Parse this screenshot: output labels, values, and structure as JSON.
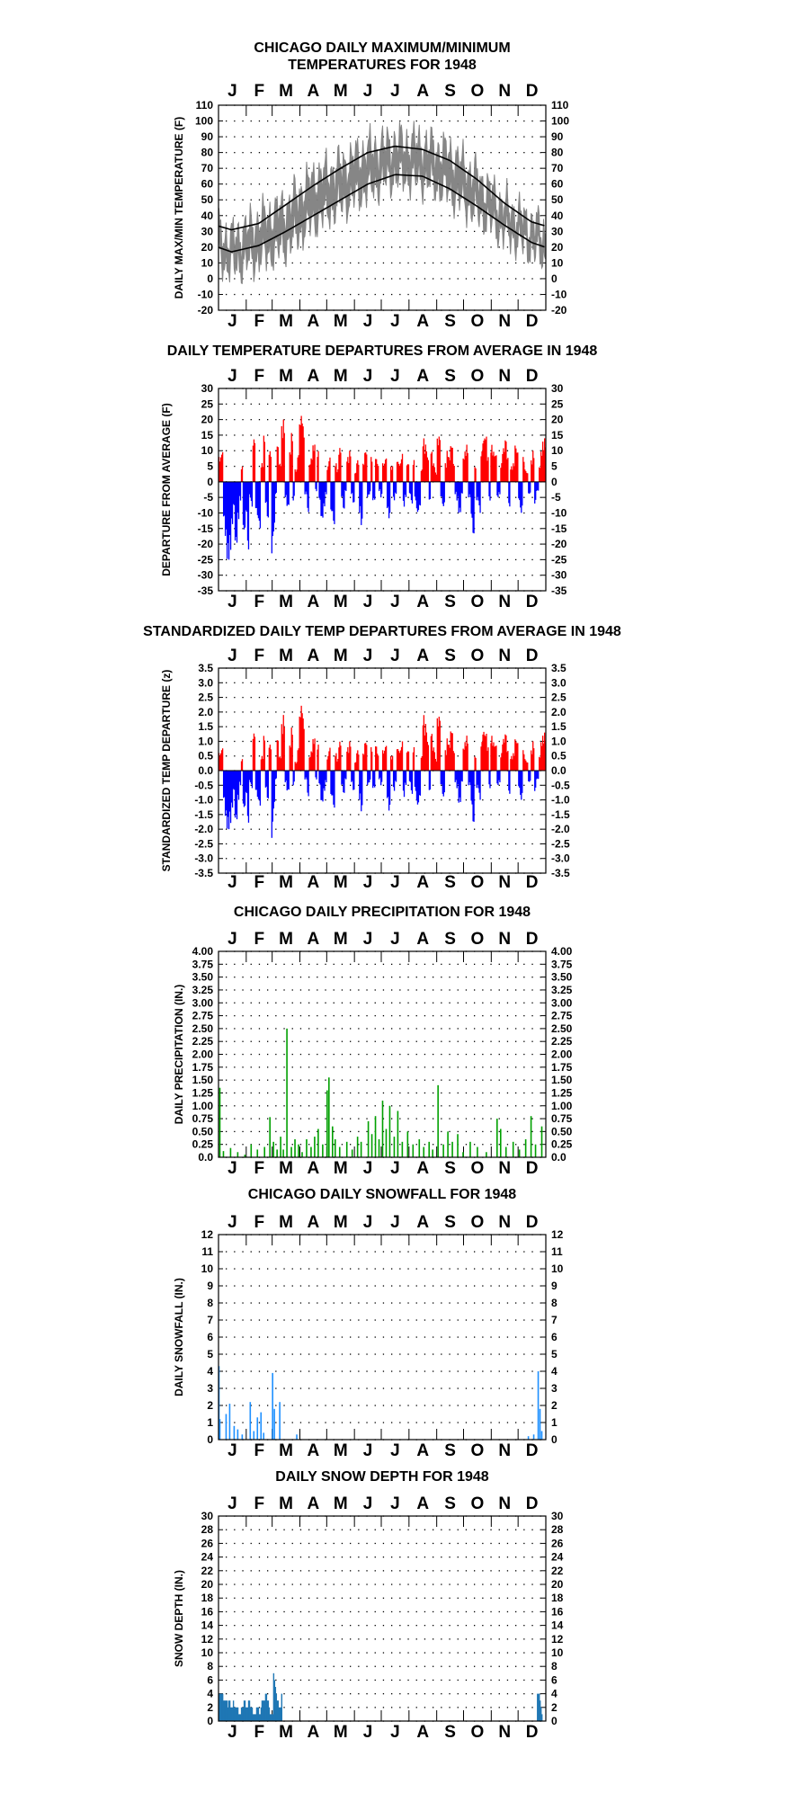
{
  "page": {
    "year": "1948"
  },
  "months": [
    "J",
    "F",
    "M",
    "A",
    "M",
    "J",
    "J",
    "A",
    "S",
    "O",
    "N",
    "D"
  ],
  "colors": {
    "temp_line": "#808080",
    "temp_avg": "#000000",
    "pos": "#ff0000",
    "neg": "#0000ff",
    "precip": "#00a000",
    "snow": "#1e90ff",
    "depth": "#1f77b4"
  },
  "chart_data": [
    {
      "id": "temperature",
      "type": "area",
      "title_lines": [
        "CHICAGO DAILY MAXIMUM/MINIMUM",
        "TEMPERATURES FOR 1948"
      ],
      "ylabel": "DAILY MAX/MIN TEMPERATURE (F)",
      "ylim": [
        -20,
        110
      ],
      "yticks": [
        "-20",
        "-10",
        "0",
        "10",
        "20",
        "30",
        "40",
        "50",
        "60",
        "70",
        "80",
        "90",
        "100",
        "110"
      ],
      "right_axis": true,
      "x": "day of year 1-366",
      "series": [
        {
          "values_max_monthly_mean": [
            24,
            35,
            44,
            62,
            70,
            80,
            85,
            84,
            78,
            63,
            45,
            34
          ],
          "values_min_monthly_mean": [
            10,
            16,
            24,
            40,
            50,
            60,
            68,
            66,
            58,
            45,
            32,
            22
          ]
        },
        {
          "normal_high": [
            31,
            35,
            47,
            59,
            70,
            80,
            84,
            82,
            75,
            63,
            48,
            36
          ],
          "normal_low": [
            17,
            21,
            30,
            40,
            50,
            60,
            66,
            65,
            57,
            46,
            34,
            23
          ]
        }
      ]
    },
    {
      "id": "departure",
      "type": "bar",
      "title_lines": [
        "DAILY TEMPERATURE DEPARTURES FROM AVERAGE IN 1948"
      ],
      "ylabel": "DEPARTURE FROM AVERAGE (F)",
      "ylim": [
        -35,
        30
      ],
      "yticks": [
        "-35",
        "-30",
        "-25",
        "-20",
        "-15",
        "-10",
        "-5",
        "0",
        "5",
        "10",
        "15",
        "20",
        "25",
        "30"
      ],
      "right_axis": true,
      "values": [
        8,
        10,
        -12,
        -18,
        -25,
        -22,
        -14,
        -8,
        -20,
        -12,
        -6,
        5,
        -16,
        -10,
        -22,
        -5,
        -8,
        14,
        -9,
        -12,
        -15,
        6,
        15,
        -7,
        -12,
        10,
        -23,
        -16,
        -4,
        12,
        6,
        18,
        20,
        -5,
        -8,
        10,
        16,
        -6,
        4,
        9,
        20,
        22,
        18,
        -4,
        -10,
        6,
        8,
        12,
        -3,
        10,
        -6,
        -12,
        -8,
        -4,
        5,
        8,
        -10,
        -14,
        6,
        4,
        11,
        -5,
        -9,
        -3,
        8,
        10,
        -4,
        -7,
        3,
        7,
        -10,
        -14,
        6,
        10,
        -5,
        -4,
        8,
        -6,
        8,
        6,
        -3,
        -5,
        6,
        8,
        -9,
        -12,
        5,
        -6,
        -4,
        7,
        6,
        9,
        -8,
        -5,
        6,
        -4,
        -7,
        7,
        -6,
        -10,
        -8,
        4,
        14,
        12,
        8,
        -6,
        10,
        6,
        3,
        14,
        15,
        -5,
        -8,
        6,
        10,
        8,
        12,
        6,
        -4,
        -6,
        -10,
        -4,
        8,
        10,
        12,
        -5,
        -12,
        -18,
        5,
        -6,
        -10,
        10,
        14,
        15,
        8,
        -6,
        12,
        10,
        9,
        -5,
        -4,
        6,
        11,
        14,
        8,
        -8,
        5,
        6,
        12,
        10,
        -6,
        -10,
        8,
        4,
        3,
        -4,
        7,
        10,
        -7,
        -3,
        5,
        10,
        13,
        14
      ],
      "colors": {
        "pos": "red",
        "neg": "blue"
      }
    },
    {
      "id": "standardized",
      "type": "bar",
      "title_lines": [
        "STANDARDIZED DAILY TEMP DEPARTURES FROM AVERAGE IN 1948"
      ],
      "ylabel": "STANDARDIZED TEMP DEPARTURE (z)",
      "ylim": [
        -3.5,
        3.5
      ],
      "yticks": [
        "-3.5",
        "-3.0",
        "-2.5",
        "-2.0",
        "-1.5",
        "-1.0",
        "-0.5",
        "0.0",
        "0.5",
        "1.0",
        "1.5",
        "2.0",
        "2.5",
        "3.0",
        "3.5"
      ],
      "right_axis": true,
      "values": [
        0.6,
        0.8,
        -1.0,
        -1.6,
        -2.0,
        -1.8,
        -1.3,
        -0.7,
        -1.7,
        -1.0,
        -0.5,
        0.4,
        -1.3,
        -0.8,
        -1.8,
        -0.4,
        -0.6,
        1.3,
        -0.7,
        -1.0,
        -1.2,
        0.5,
        1.2,
        -0.6,
        -1.0,
        0.9,
        -2.3,
        -1.3,
        -0.3,
        1.1,
        0.5,
        1.6,
        1.9,
        -0.4,
        -0.7,
        0.9,
        1.5,
        -0.5,
        0.3,
        0.8,
        2.0,
        2.3,
        1.8,
        -0.3,
        -0.9,
        0.5,
        0.7,
        1.1,
        -0.3,
        0.9,
        -0.5,
        -1.1,
        -0.7,
        -0.4,
        0.5,
        0.8,
        -0.9,
        -1.3,
        0.6,
        0.4,
        1.0,
        -0.5,
        -0.8,
        -0.3,
        0.8,
        1.0,
        -0.4,
        -0.7,
        0.3,
        0.7,
        -1.0,
        -1.4,
        0.6,
        1.0,
        -0.5,
        -0.4,
        0.8,
        -0.6,
        0.9,
        0.6,
        -0.3,
        -0.5,
        0.7,
        0.9,
        -1.0,
        -1.4,
        0.5,
        -0.7,
        -0.4,
        0.8,
        0.7,
        1.0,
        -0.9,
        -0.5,
        0.7,
        -0.4,
        -0.8,
        0.8,
        -0.7,
        -1.2,
        -0.9,
        0.5,
        1.9,
        1.6,
        1.0,
        -0.7,
        1.3,
        0.8,
        0.4,
        1.8,
        1.9,
        -0.5,
        -0.9,
        0.7,
        1.1,
        0.9,
        1.4,
        0.7,
        -0.4,
        -0.6,
        -1.1,
        -0.4,
        0.8,
        1.0,
        1.2,
        -0.5,
        -1.2,
        -1.9,
        0.5,
        -0.6,
        -1.0,
        1.0,
        1.4,
        1.3,
        0.8,
        -0.6,
        1.2,
        1.0,
        0.9,
        -0.5,
        -0.4,
        0.6,
        1.1,
        1.3,
        0.7,
        -0.8,
        0.5,
        0.6,
        1.1,
        1.0,
        -0.6,
        -1.0,
        0.7,
        0.4,
        0.3,
        -0.4,
        0.7,
        1.0,
        -0.7,
        -0.3,
        0.5,
        1.0,
        1.2,
        1.3
      ],
      "colors": {
        "pos": "red",
        "neg": "blue"
      }
    },
    {
      "id": "precipitation",
      "type": "bar",
      "title_lines": [
        "CHICAGO DAILY PRECIPITATION FOR 1948"
      ],
      "ylabel": "DAILY PRECIPITATION (IN.)",
      "ylim": [
        0,
        4
      ],
      "yticks": [
        "0.0",
        "0.25",
        "0.50",
        "0.75",
        "1.00",
        "1.25",
        "1.50",
        "1.75",
        "2.00",
        "2.25",
        "2.50",
        "2.75",
        "3.00",
        "3.25",
        "3.50",
        "3.75",
        "4.00"
      ],
      "right_axis": true,
      "events": [
        [
          2,
          1.35
        ],
        [
          6,
          0.12
        ],
        [
          14,
          0.18
        ],
        [
          22,
          0.1
        ],
        [
          30,
          0.05
        ],
        [
          37,
          0.25
        ],
        [
          44,
          0.15
        ],
        [
          52,
          0.2
        ],
        [
          58,
          0.78
        ],
        [
          62,
          0.3
        ],
        [
          66,
          0.15
        ],
        [
          70,
          0.4
        ],
        [
          73,
          0.15
        ],
        [
          77,
          2.5
        ],
        [
          82,
          0.2
        ],
        [
          86,
          0.35
        ],
        [
          90,
          0.25
        ],
        [
          94,
          0.1
        ],
        [
          99,
          0.35
        ],
        [
          104,
          0.2
        ],
        [
          108,
          0.4
        ],
        [
          112,
          0.55
        ],
        [
          117,
          0.25
        ],
        [
          122,
          1.3
        ],
        [
          124,
          1.55
        ],
        [
          128,
          0.6
        ],
        [
          131,
          0.35
        ],
        [
          136,
          0.2
        ],
        [
          144,
          0.3
        ],
        [
          150,
          0.15
        ],
        [
          156,
          0.4
        ],
        [
          160,
          0.3
        ],
        [
          168,
          0.7
        ],
        [
          172,
          0.45
        ],
        [
          176,
          0.8
        ],
        [
          180,
          0.35
        ],
        [
          184,
          1.1
        ],
        [
          188,
          0.55
        ],
        [
          192,
          1.0
        ],
        [
          197,
          0.4
        ],
        [
          201,
          0.9
        ],
        [
          206,
          0.3
        ],
        [
          212,
          0.5
        ],
        [
          218,
          0.25
        ],
        [
          225,
          0.35
        ],
        [
          230,
          0.2
        ],
        [
          236,
          0.3
        ],
        [
          240,
          0.15
        ],
        [
          246,
          1.4
        ],
        [
          252,
          0.25
        ],
        [
          257,
          0.5
        ],
        [
          262,
          0.3
        ],
        [
          268,
          0.45
        ],
        [
          274,
          0.1
        ],
        [
          282,
          0.3
        ],
        [
          290,
          0.2
        ],
        [
          300,
          0.1
        ],
        [
          312,
          0.75
        ],
        [
          316,
          0.55
        ],
        [
          322,
          0.2
        ],
        [
          330,
          0.3
        ],
        [
          337,
          0.15
        ],
        [
          344,
          0.35
        ],
        [
          350,
          0.8
        ],
        [
          355,
          0.25
        ],
        [
          362,
          0.6
        ]
      ],
      "color": "green"
    },
    {
      "id": "snowfall",
      "type": "bar",
      "title_lines": [
        "CHICAGO DAILY SNOWFALL FOR 1948"
      ],
      "ylabel": "DAILY SNOWFALL (IN.)",
      "ylim": [
        0,
        12
      ],
      "yticks": [
        "0",
        "1",
        "2",
        "3",
        "4",
        "5",
        "6",
        "7",
        "8",
        "9",
        "10",
        "11",
        "12"
      ],
      "right_axis": true,
      "events": [
        [
          1,
          4.3
        ],
        [
          2,
          1.2
        ],
        [
          9,
          1.5
        ],
        [
          13,
          2.1
        ],
        [
          18,
          0.8
        ],
        [
          22,
          0.6
        ],
        [
          27,
          0.3
        ],
        [
          36,
          2.2
        ],
        [
          40,
          0.5
        ],
        [
          44,
          1.3
        ],
        [
          48,
          1.6
        ],
        [
          51,
          0.4
        ],
        [
          61,
          3.9
        ],
        [
          63,
          1.8
        ],
        [
          69,
          2.2
        ],
        [
          88,
          0.3
        ],
        [
          347,
          0.2
        ],
        [
          353,
          0.3
        ],
        [
          358,
          4.0
        ],
        [
          360,
          1.8
        ],
        [
          362,
          0.5
        ]
      ],
      "color": "dodgerblue"
    },
    {
      "id": "snow_depth",
      "type": "area",
      "title_lines": [
        "DAILY SNOW DEPTH FOR 1948"
      ],
      "ylabel": "SNOW DEPTH (IN.)",
      "ylim": [
        0,
        30
      ],
      "yticks": [
        "0",
        "2",
        "4",
        "6",
        "8",
        "10",
        "12",
        "14",
        "16",
        "18",
        "20",
        "22",
        "24",
        "26",
        "28",
        "30"
      ],
      "right_axis": true,
      "values_jan_mar": [
        4,
        4,
        4,
        4,
        4,
        3,
        3,
        3,
        3,
        3,
        2,
        3,
        3,
        2,
        2,
        2,
        3,
        2,
        2,
        2,
        2,
        2,
        1,
        1,
        1,
        2,
        2,
        2,
        3,
        3,
        2,
        2,
        2,
        3,
        3,
        2,
        2,
        2,
        1,
        1,
        1,
        1,
        2,
        2,
        2,
        1,
        1,
        2,
        3,
        3,
        3,
        3,
        4,
        4,
        3,
        3,
        2,
        1,
        1,
        1,
        1,
        7,
        6,
        5,
        4,
        3,
        3,
        2,
        2,
        2,
        4
      ],
      "values_dec": [
        [
          357,
          4
        ],
        [
          358,
          4
        ],
        [
          359,
          4
        ],
        [
          360,
          3
        ],
        [
          361,
          2
        ],
        [
          362,
          1
        ]
      ],
      "color": "steelblue"
    }
  ]
}
